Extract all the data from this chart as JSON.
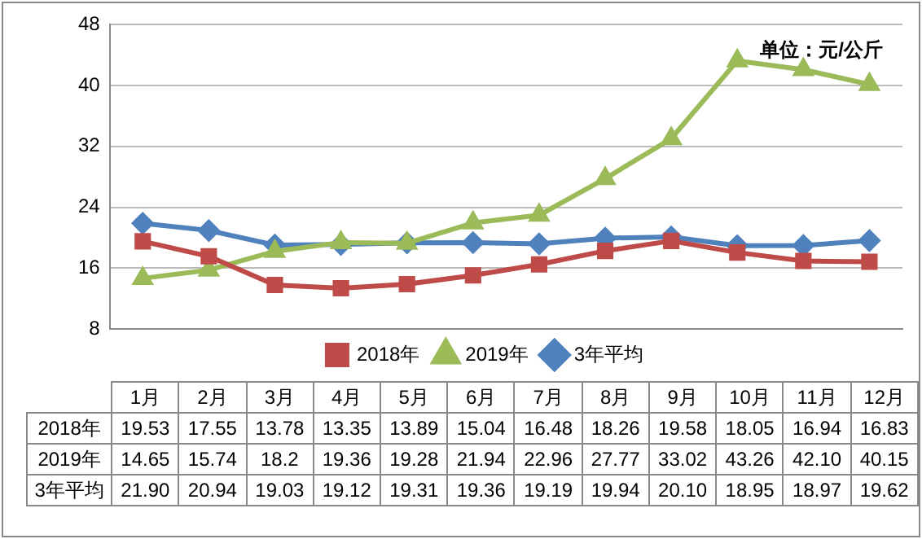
{
  "chart_data": {
    "type": "line",
    "categories": [
      "1月",
      "2月",
      "3月",
      "4月",
      "5月",
      "6月",
      "7月",
      "8月",
      "9月",
      "10月",
      "11月",
      "12月"
    ],
    "series": [
      {
        "name": "2018年",
        "color": "#be4b48",
        "marker": "square",
        "values": [
          19.53,
          17.55,
          13.78,
          13.35,
          13.89,
          15.04,
          16.48,
          18.26,
          19.58,
          18.05,
          16.94,
          16.83
        ],
        "value_labels": [
          "19.53",
          "17.55",
          "13.78",
          "13.35",
          "13.89",
          "15.04",
          "16.48",
          "18.26",
          "19.58",
          "18.05",
          "16.94",
          "16.83"
        ]
      },
      {
        "name": "2019年",
        "color": "#9bbb59",
        "marker": "triangle",
        "values": [
          14.65,
          15.74,
          18.2,
          19.36,
          19.28,
          21.94,
          22.96,
          27.77,
          33.02,
          43.26,
          42.1,
          40.15
        ],
        "value_labels": [
          "14.65",
          "15.74",
          "18.2",
          "19.36",
          "19.28",
          "21.94",
          "22.96",
          "27.77",
          "33.02",
          "43.26",
          "42.10",
          "40.15"
        ]
      },
      {
        "name": "3年平均",
        "color": "#4f81bd",
        "marker": "diamond",
        "values": [
          21.9,
          20.94,
          19.03,
          19.12,
          19.31,
          19.36,
          19.19,
          19.94,
          20.1,
          18.95,
          18.97,
          19.62
        ],
        "value_labels": [
          "21.90",
          "20.94",
          "19.03",
          "19.12",
          "19.31",
          "19.36",
          "19.19",
          "19.94",
          "20.10",
          "18.95",
          "18.97",
          "19.62"
        ]
      }
    ],
    "ylim": [
      8,
      48
    ],
    "yticks": [
      8,
      16,
      24,
      32,
      40,
      48
    ],
    "grid": "y",
    "legend": "bottom",
    "line_style": "solid",
    "annotations": [
      "单位：元/公斤"
    ]
  }
}
